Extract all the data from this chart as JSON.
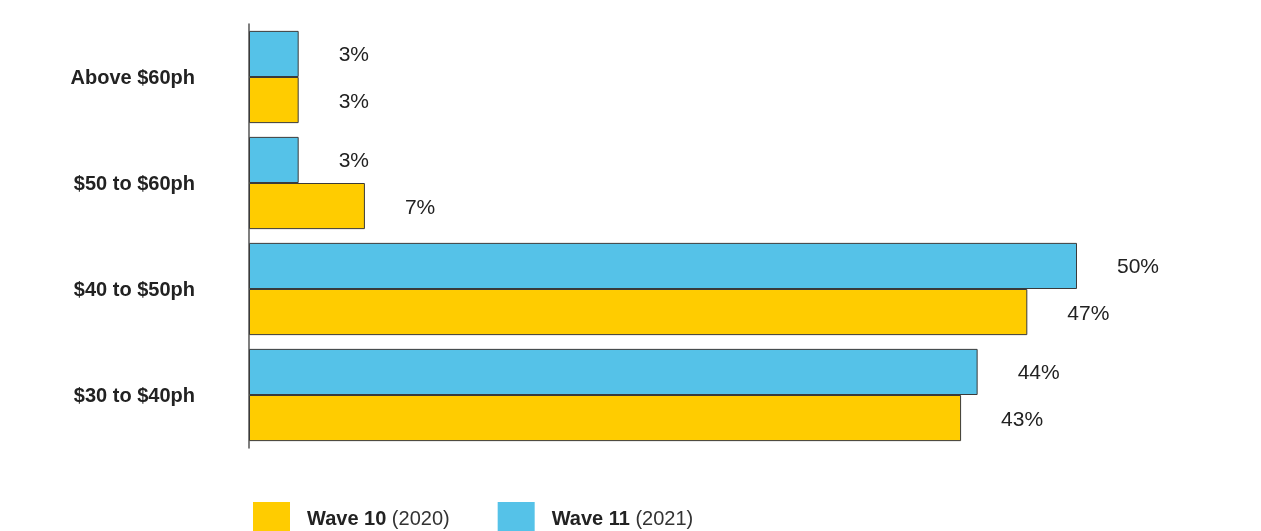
{
  "chart_data": {
    "type": "bar",
    "orientation": "horizontal",
    "categories": [
      "Above $60ph",
      "$50 to $60ph",
      "$40 to $50ph",
      "$30 to $40ph"
    ],
    "series": [
      {
        "name": "Wave 10 (2020)",
        "color": "#ffcc00",
        "values": [
          3,
          7,
          47,
          43
        ],
        "value_labels": [
          "3%",
          "7%",
          "47%",
          "43%"
        ]
      },
      {
        "name": "Wave 11 (2021)",
        "color": "#55c2e8",
        "values": [
          3,
          3,
          50,
          44
        ],
        "value_labels": [
          "3%",
          "3%",
          "50%",
          "44%"
        ]
      }
    ],
    "legend": "bottom"
  }
}
